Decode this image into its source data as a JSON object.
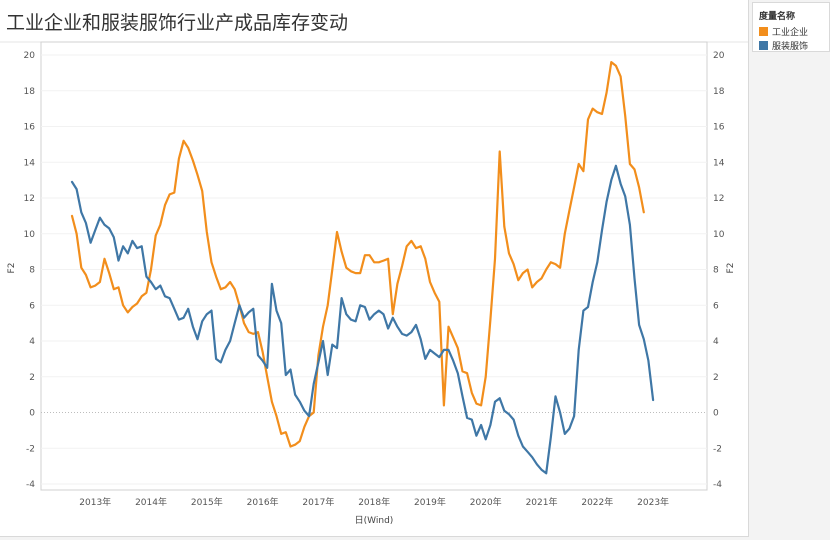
{
  "chart_data": {
    "type": "line",
    "title": "工业企业和服装服饰行业产成品库存变动",
    "xlabel": "日(Wind)",
    "ylabel_left": "F2",
    "ylabel_right": "F2",
    "ylim": [
      -4,
      20
    ],
    "yticks": [
      -4,
      -2,
      0,
      2,
      4,
      6,
      8,
      10,
      12,
      14,
      16,
      18,
      20
    ],
    "x_tick_labels": [
      "2013年",
      "2014年",
      "2015年",
      "2016年",
      "2017年",
      "2018年",
      "2019年",
      "2020年",
      "2021年",
      "2022年",
      "2023年"
    ],
    "x_start": "2012-08",
    "x_end": "2023-05",
    "legend": {
      "title": "度量名称",
      "position": "top-right"
    },
    "series": [
      {
        "name": "工业企业",
        "color": "#f28e1c",
        "values": [
          11.0,
          10.0,
          8.1,
          7.7,
          7.0,
          7.1,
          7.3,
          8.6,
          7.8,
          6.9,
          7.0,
          6.0,
          5.6,
          5.9,
          6.1,
          6.5,
          6.7,
          8.0,
          9.9,
          10.5,
          11.6,
          12.2,
          12.3,
          14.2,
          15.2,
          14.8,
          14.1,
          13.3,
          12.4,
          10.1,
          8.4,
          7.6,
          6.9,
          7.0,
          7.3,
          6.9,
          6.0,
          5.0,
          4.5,
          4.4,
          4.5,
          3.4,
          2.0,
          0.6,
          -0.2,
          -1.2,
          -1.1,
          -1.9,
          -1.8,
          -1.6,
          -0.8,
          -0.2,
          0.0,
          3.2,
          4.8,
          6.0,
          8.0,
          10.1,
          9.0,
          8.1,
          7.9,
          7.8,
          7.8,
          8.8,
          8.8,
          8.4,
          8.4,
          8.5,
          8.6,
          5.5,
          7.2,
          8.2,
          9.3,
          9.6,
          9.2,
          9.3,
          8.6,
          7.3,
          6.7,
          6.2,
          0.4,
          4.8,
          4.2,
          3.6,
          2.3,
          2.2,
          1.1,
          0.5,
          0.4,
          2.0,
          5.2,
          8.6,
          14.6,
          10.4,
          8.9,
          8.3,
          7.4,
          7.8,
          8.0,
          7.0,
          7.3,
          7.5,
          8.0,
          8.4,
          8.3,
          8.1,
          10.0,
          11.3,
          12.6,
          13.9,
          13.5,
          16.4,
          17.0,
          16.8,
          16.7,
          17.9,
          19.6,
          19.4,
          18.8,
          16.6,
          13.9,
          13.6,
          12.6,
          11.2
        ],
        "x_start": "2012-08"
      },
      {
        "name": "服装服饰",
        "color": "#3f77a6",
        "values": [
          12.9,
          12.5,
          11.2,
          10.6,
          9.5,
          10.2,
          10.9,
          10.5,
          10.3,
          9.8,
          8.5,
          9.3,
          8.9,
          9.6,
          9.2,
          9.3,
          7.6,
          7.3,
          6.9,
          7.1,
          6.5,
          6.4,
          5.8,
          5.2,
          5.3,
          5.8,
          4.8,
          4.1,
          5.1,
          5.5,
          5.7,
          3.0,
          2.8,
          3.5,
          4.0,
          5.0,
          6.0,
          5.3,
          5.6,
          5.8,
          3.2,
          2.9,
          2.5,
          7.2,
          5.7,
          5.0,
          2.1,
          2.4,
          1.0,
          0.6,
          0.1,
          -0.2,
          1.6,
          2.8,
          4.0,
          2.1,
          3.8,
          3.6,
          6.4,
          5.5,
          5.2,
          5.1,
          6.0,
          5.9,
          5.2,
          5.5,
          5.7,
          5.5,
          4.7,
          5.3,
          4.8,
          4.4,
          4.3,
          4.5,
          4.9,
          4.1,
          3.0,
          3.5,
          3.3,
          3.1,
          3.5,
          3.5,
          2.9,
          2.2,
          0.9,
          -0.3,
          -0.4,
          -1.3,
          -0.7,
          -1.5,
          -0.7,
          0.6,
          0.8,
          0.1,
          -0.1,
          -0.4,
          -1.3,
          -1.9,
          -2.2,
          -2.5,
          -2.9,
          -3.2,
          -3.4,
          -1.4,
          0.9,
          0.0,
          -1.2,
          -0.9,
          -0.2,
          3.5,
          5.7,
          5.9,
          7.3,
          8.4,
          10.2,
          11.8,
          13.0,
          13.8,
          12.8,
          12.1,
          10.5,
          7.5,
          4.9,
          4.1,
          2.9,
          0.7
        ],
        "x_start": "2012-08"
      }
    ]
  }
}
